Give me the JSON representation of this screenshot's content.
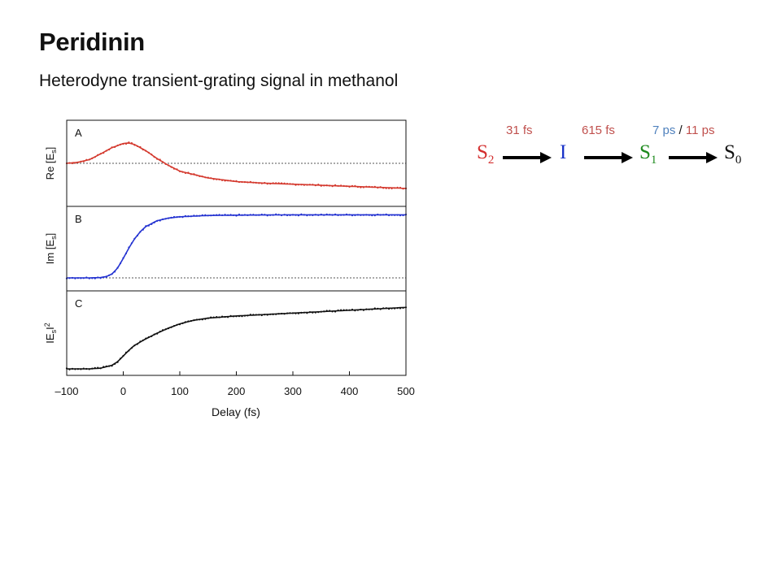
{
  "slide": {
    "title": "Peridinin",
    "subtitle": "Heterodyne transient-grating signal in methanol"
  },
  "scheme": {
    "states": [
      {
        "base": "S",
        "sub": "2",
        "color": "#d32f2f"
      },
      {
        "base": "I",
        "sub": "",
        "color": "#1a33c8"
      },
      {
        "base": "S",
        "sub": "1",
        "color": "#1e8a1e"
      },
      {
        "base": "S",
        "sub": "0",
        "color": "#111111"
      }
    ],
    "times": {
      "t1": {
        "text": "31 fs",
        "color": "#c0504d"
      },
      "t2": {
        "text": "615 fs",
        "color": "#c0504d"
      },
      "t3a": {
        "text": "7 ps",
        "color": "#4f81bd"
      },
      "t3sep": {
        "text": " / ",
        "color": "#111111"
      },
      "t3b": {
        "text": "11 ps",
        "color": "#c0504d"
      }
    },
    "arrow_color": "#000000"
  },
  "chart_data": {
    "type": "line",
    "xlabel": "Delay (fs)",
    "xlim": [
      -100,
      500
    ],
    "xticks": [
      -100,
      0,
      100,
      200,
      300,
      400,
      500
    ],
    "xtick_labels": [
      "–100",
      "0",
      "100",
      "200",
      "300",
      "400",
      "500"
    ],
    "panels": [
      {
        "label": "A",
        "ylabel": "Re [E",
        "ylabel_sub": "s",
        "ylabel_post": "]",
        "color": "#d43a2f",
        "ylim": [
          -0.35,
          0.35
        ],
        "baseline": 0,
        "x": [
          -100,
          -80,
          -60,
          -40,
          -20,
          0,
          10,
          20,
          40,
          60,
          80,
          100,
          150,
          200,
          250,
          300,
          350,
          400,
          450,
          500
        ],
        "y": [
          0,
          0.01,
          0.035,
          0.09,
          0.15,
          0.19,
          0.195,
          0.18,
          0.12,
          0.045,
          -0.02,
          -0.075,
          -0.14,
          -0.175,
          -0.19,
          -0.2,
          -0.21,
          -0.22,
          -0.23,
          -0.24
        ]
      },
      {
        "label": "B",
        "ylabel": "Im [E",
        "ylabel_sub": "s",
        "ylabel_post": "]",
        "color": "#2433d1",
        "ylim": [
          -0.1,
          1.0
        ],
        "baseline": 0,
        "x": [
          -100,
          -60,
          -40,
          -30,
          -20,
          -10,
          0,
          10,
          20,
          30,
          40,
          60,
          80,
          100,
          150,
          200,
          300,
          400,
          500
        ],
        "y": [
          0,
          0,
          0.005,
          0.02,
          0.06,
          0.15,
          0.3,
          0.46,
          0.6,
          0.71,
          0.79,
          0.88,
          0.92,
          0.94,
          0.96,
          0.965,
          0.97,
          0.97,
          0.97
        ]
      },
      {
        "label": "C",
        "ylabel": "IE",
        "ylabel_sub": "s",
        "ylabel_post": "I",
        "ylabel_sup": "2",
        "color": "#111111",
        "ylim": [
          0,
          1.0
        ],
        "baseline": null,
        "x": [
          -100,
          -60,
          -40,
          -20,
          -10,
          0,
          10,
          20,
          40,
          60,
          80,
          100,
          125,
          150,
          200,
          250,
          300,
          350,
          400,
          450,
          500
        ],
        "y": [
          0,
          0,
          0.01,
          0.05,
          0.1,
          0.18,
          0.26,
          0.33,
          0.42,
          0.5,
          0.57,
          0.63,
          0.68,
          0.71,
          0.74,
          0.76,
          0.78,
          0.8,
          0.82,
          0.84,
          0.86
        ]
      }
    ]
  }
}
